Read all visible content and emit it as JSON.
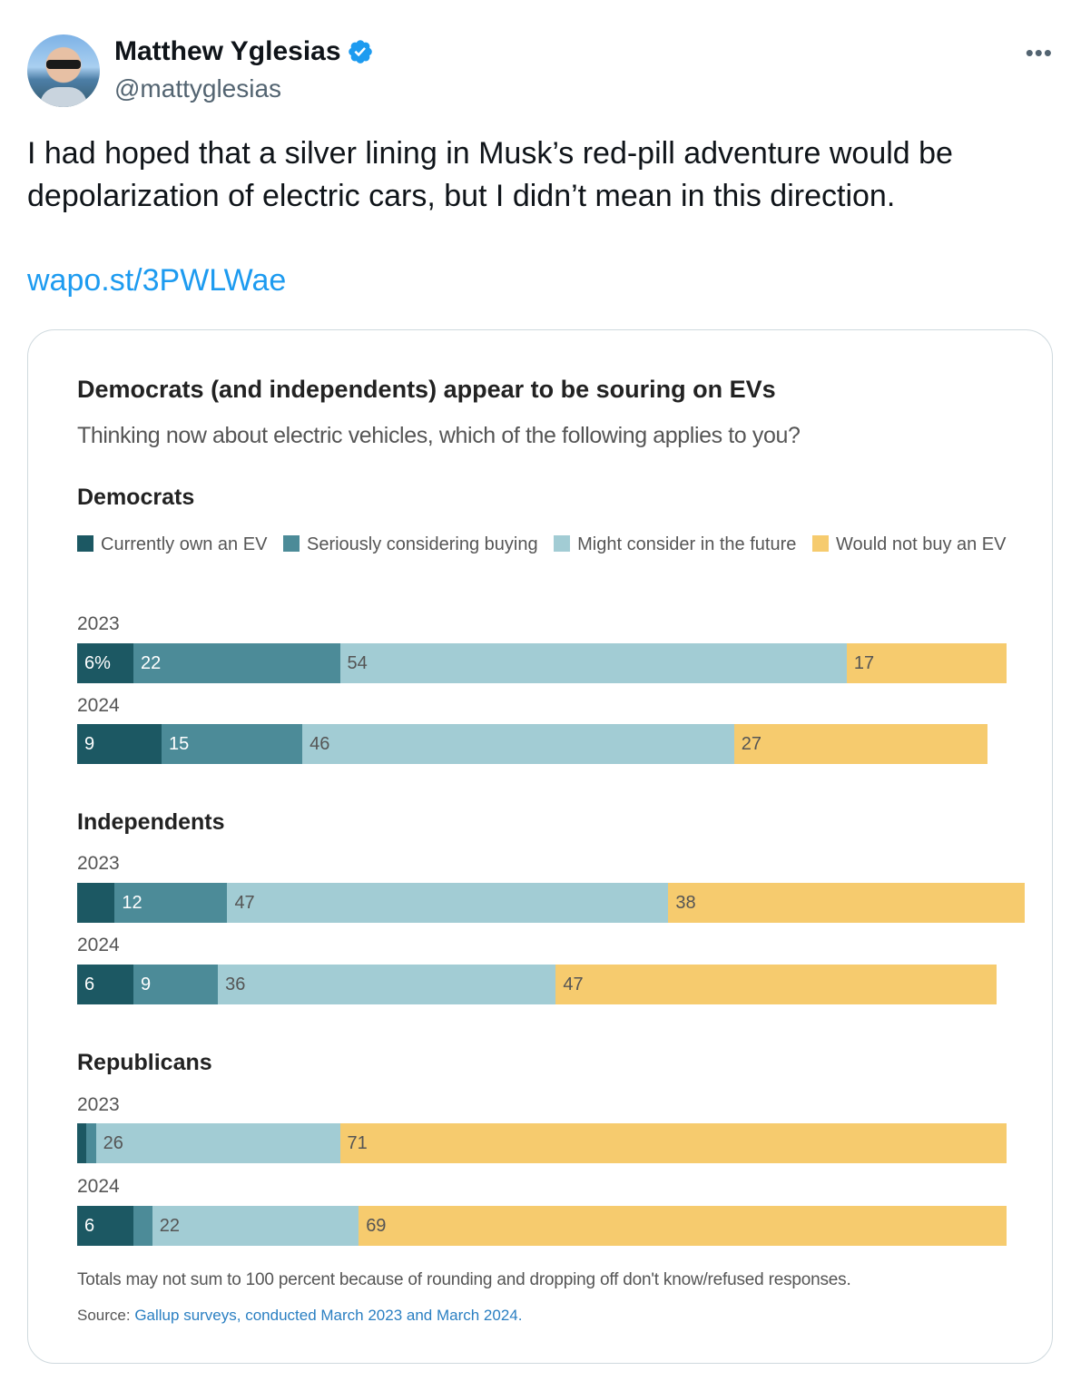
{
  "tweet": {
    "display_name": "Matthew Yglesias",
    "handle": "@mattyglesias",
    "text": "I had hoped that a silver lining in Musk’s red-pill adventure would be depolarization of electric cars, but I didn’t mean in this direction.",
    "link": "wapo.st/3PWLWae",
    "more_icon": "more-icon",
    "verified_icon": "verified-badge-icon"
  },
  "colors": {
    "own": "#1c5863",
    "considering": "#4c8b98",
    "might": "#a2ccd4",
    "would_not": "#f6cb6e",
    "link": "#1d9bf0"
  },
  "chart_data": {
    "type": "bar",
    "stacked": true,
    "orientation": "horizontal",
    "title": "Democrats (and independents) appear to be souring on EVs",
    "subtitle": "Thinking now about electric vehicles, which of the following applies to you?",
    "series": [
      {
        "name": "Currently own an EV"
      },
      {
        "name": "Seriously considering buying"
      },
      {
        "name": "Might consider in the future"
      },
      {
        "name": "Would not buy an EV"
      }
    ],
    "groups": [
      {
        "name": "Democrats",
        "rows": [
          {
            "year": "2023",
            "values": [
              6,
              22,
              54,
              17
            ],
            "labels": [
              "6%",
              "22",
              "54",
              "17"
            ]
          },
          {
            "year": "2024",
            "values": [
              9,
              15,
              46,
              27
            ],
            "labels": [
              "9",
              "15",
              "46",
              "27"
            ]
          }
        ]
      },
      {
        "name": "Independents",
        "rows": [
          {
            "year": "2023",
            "values": [
              4,
              12,
              47,
              38
            ],
            "labels": [
              "",
              "12",
              "47",
              "38"
            ]
          },
          {
            "year": "2024",
            "values": [
              6,
              9,
              36,
              47
            ],
            "labels": [
              "6",
              "9",
              "36",
              "47"
            ]
          }
        ]
      },
      {
        "name": "Republicans",
        "rows": [
          {
            "year": "2023",
            "values": [
              1,
              1,
              26,
              71
            ],
            "labels": [
              "",
              "",
              "26",
              "71"
            ]
          },
          {
            "year": "2024",
            "values": [
              6,
              2,
              22,
              69
            ],
            "labels": [
              "6",
              "",
              "22",
              "69"
            ]
          }
        ]
      }
    ],
    "xlim": [
      0,
      100
    ],
    "footnote": "Totals may not sum to 100 percent because of rounding and dropping off don't know/refused responses.",
    "source_label": "Source:",
    "source_text": "Gallup surveys, conducted March 2023 and March 2024."
  }
}
